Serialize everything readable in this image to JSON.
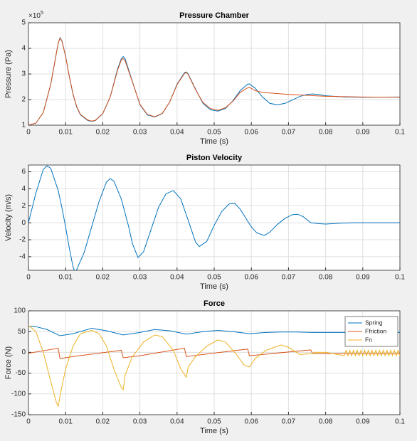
{
  "chart_data": [
    {
      "type": "line",
      "title": "Pressure Chamber",
      "xlabel": "Time (s)",
      "ylabel": "Pressure (Pa)",
      "y_multiplier": "×10",
      "y_exponent": "5",
      "xlim": [
        0,
        0.1
      ],
      "xticks": [
        0,
        0.01,
        0.02,
        0.03,
        0.04,
        0.05,
        0.06,
        0.07,
        0.08,
        0.09,
        0.1
      ],
      "ylim": [
        100000,
        500000
      ],
      "yticks": [
        {
          "value": 100000,
          "label": "1"
        },
        {
          "value": 200000,
          "label": "2"
        },
        {
          "value": 300000,
          "label": "3"
        },
        {
          "value": 400000,
          "label": "4"
        },
        {
          "value": 500000,
          "label": "5"
        }
      ],
      "grid": true,
      "series": [
        {
          "color": "#0072bd",
          "x": [
            0,
            0.002,
            0.004,
            0.006,
            0.007,
            0.008,
            0.0085,
            0.009,
            0.01,
            0.011,
            0.012,
            0.013,
            0.014,
            0.016,
            0.017,
            0.018,
            0.02,
            0.022,
            0.024,
            0.025,
            0.0255,
            0.026,
            0.028,
            0.03,
            0.032,
            0.034,
            0.036,
            0.038,
            0.04,
            0.042,
            0.0425,
            0.043,
            0.045,
            0.047,
            0.049,
            0.051,
            0.053,
            0.055,
            0.057,
            0.059,
            0.0595,
            0.061,
            0.063,
            0.065,
            0.067,
            0.069,
            0.071,
            0.073,
            0.075,
            0.0765,
            0.078,
            0.08,
            0.085,
            0.09,
            0.1
          ],
          "values": [
            100000,
            108000,
            150000,
            260000,
            340000,
            420000,
            442000,
            430000,
            370000,
            290000,
            220000,
            170000,
            140000,
            118000,
            115000,
            118000,
            145000,
            210000,
            320000,
            360000,
            368000,
            360000,
            270000,
            180000,
            140000,
            132000,
            145000,
            190000,
            260000,
            305000,
            308000,
            300000,
            240000,
            185000,
            160000,
            155000,
            165000,
            195000,
            235000,
            260000,
            261000,
            245000,
            210000,
            185000,
            180000,
            185000,
            198000,
            212000,
            220000,
            222000,
            220000,
            215000,
            210000,
            209000,
            210000
          ]
        },
        {
          "color": "#d95319",
          "x": [
            0,
            0.002,
            0.004,
            0.006,
            0.007,
            0.008,
            0.0085,
            0.009,
            0.01,
            0.011,
            0.012,
            0.013,
            0.014,
            0.016,
            0.017,
            0.018,
            0.02,
            0.022,
            0.024,
            0.025,
            0.0255,
            0.026,
            0.028,
            0.03,
            0.032,
            0.034,
            0.036,
            0.038,
            0.04,
            0.042,
            0.0425,
            0.043,
            0.045,
            0.047,
            0.049,
            0.051,
            0.053,
            0.055,
            0.057,
            0.059,
            0.0595,
            0.061,
            0.063,
            0.07,
            0.08,
            0.09,
            0.1
          ],
          "values": [
            100000,
            108000,
            150000,
            260000,
            340000,
            420000,
            440000,
            428000,
            368000,
            290000,
            222000,
            172000,
            142000,
            120000,
            116000,
            119000,
            146000,
            210000,
            315000,
            355000,
            360000,
            352000,
            268000,
            182000,
            142000,
            133000,
            146000,
            190000,
            258000,
            302000,
            306000,
            298000,
            238000,
            188000,
            165000,
            158000,
            168000,
            193000,
            228000,
            246000,
            248000,
            235000,
            228000,
            220000,
            213000,
            210000,
            209000
          ]
        }
      ]
    },
    {
      "type": "line",
      "title": "Piston Velocity",
      "xlabel": "Time (s)",
      "ylabel": "Velocity (m/s)",
      "xlim": [
        0,
        0.1
      ],
      "xticks": [
        0,
        0.01,
        0.02,
        0.03,
        0.04,
        0.05,
        0.06,
        0.07,
        0.08,
        0.09,
        0.1
      ],
      "ylim": [
        -5.6,
        6.8
      ],
      "yticks": [
        -4,
        -2,
        0,
        2,
        4,
        6
      ],
      "grid": true,
      "series": [
        {
          "color": "#0072bd",
          "x": [
            0,
            0.002,
            0.004,
            0.005,
            0.006,
            0.008,
            0.009,
            0.01,
            0.011,
            0.012,
            0.0125,
            0.013,
            0.015,
            0.017,
            0.019,
            0.021,
            0.022,
            0.023,
            0.025,
            0.027,
            0.028,
            0.0295,
            0.031,
            0.033,
            0.035,
            0.037,
            0.039,
            0.041,
            0.043,
            0.045,
            0.046,
            0.048,
            0.05,
            0.052,
            0.054,
            0.0555,
            0.057,
            0.059,
            0.06,
            0.0615,
            0.0635,
            0.065,
            0.067,
            0.069,
            0.071,
            0.0725,
            0.074,
            0.076,
            0.078,
            0.08,
            0.084,
            0.088,
            0.1
          ],
          "values": [
            0,
            3.5,
            6.3,
            6.7,
            6.4,
            3.8,
            1.8,
            -0.5,
            -3,
            -5.2,
            -5.8,
            -5.5,
            -3.5,
            -0.5,
            2.5,
            4.8,
            5.2,
            4.9,
            2.8,
            -0.5,
            -2.5,
            -4.1,
            -3.4,
            -0.8,
            1.8,
            3.4,
            3.8,
            2.8,
            0.3,
            -2.3,
            -2.8,
            -2.2,
            -0.3,
            1.3,
            2.2,
            2.3,
            1.6,
            0.2,
            -0.5,
            -1.2,
            -1.5,
            -1.1,
            -0.2,
            0.5,
            0.95,
            1,
            0.7,
            0,
            -0.1,
            -0.15,
            -0.05,
            0,
            0
          ]
        }
      ]
    },
    {
      "type": "line",
      "title": "Force",
      "xlabel": "Time (s)",
      "ylabel": "Force (N)",
      "xlim": [
        0,
        0.1
      ],
      "xticks": [
        0,
        0.01,
        0.02,
        0.03,
        0.04,
        0.05,
        0.06,
        0.07,
        0.08,
        0.09,
        0.1
      ],
      "ylim": [
        -150,
        100
      ],
      "yticks": [
        -150,
        -100,
        -50,
        0,
        50,
        100
      ],
      "grid": true,
      "legend": "northeast",
      "series": [
        {
          "name": "Spring",
          "color": "#0072bd",
          "x": [
            0,
            0.002,
            0.005,
            0.0085,
            0.012,
            0.017,
            0.021,
            0.0255,
            0.03,
            0.034,
            0.038,
            0.0425,
            0.047,
            0.051,
            0.055,
            0.0595,
            0.064,
            0.068,
            0.072,
            0.0765,
            0.08,
            0.09,
            0.1
          ],
          "values": [
            63,
            62,
            55,
            40,
            45,
            58,
            52,
            42,
            48,
            55,
            52,
            44,
            50,
            53,
            50,
            45,
            48,
            49,
            49,
            48,
            48,
            48,
            48
          ]
        },
        {
          "name": "Ffriction",
          "color": "#d95319",
          "x": [
            0,
            0.008,
            0.0085,
            0.012,
            0.025,
            0.0255,
            0.03,
            0.042,
            0.0425,
            0.059,
            0.0595,
            0.076,
            0.0765,
            0.1
          ],
          "values": [
            -2,
            10,
            -15,
            -10,
            5,
            -13,
            -8,
            10,
            -10,
            8,
            -8,
            6,
            -3,
            -3
          ]
        },
        {
          "name": "Fn",
          "color": "#edb120",
          "x": [
            0,
            0.002,
            0.004,
            0.006,
            0.0075,
            0.008,
            0.0085,
            0.01,
            0.012,
            0.014,
            0.017,
            0.019,
            0.021,
            0.023,
            0.025,
            0.0255,
            0.026,
            0.028,
            0.031,
            0.034,
            0.036,
            0.039,
            0.041,
            0.0425,
            0.043,
            0.045,
            0.048,
            0.051,
            0.053,
            0.056,
            0.058,
            0.0595,
            0.061,
            0.064,
            0.068,
            0.07,
            0.073,
            0.0765,
            0.077,
            0.08,
            0.085,
            0.0855,
            0.086,
            0.0865,
            0.087,
            0.0875,
            0.088,
            0.0885,
            0.089,
            0.0895,
            0.09,
            0.0905,
            0.091,
            0.0915,
            0.092,
            0.0925,
            0.093,
            0.0935,
            0.094,
            0.0945,
            0.095,
            0.0955,
            0.096,
            0.0965,
            0.097,
            0.0975,
            0.098,
            0.0985,
            0.099,
            0.0995,
            0.1
          ],
          "values": [
            65,
            50,
            0,
            -70,
            -120,
            -130,
            -105,
            -40,
            15,
            45,
            53,
            45,
            15,
            -40,
            -85,
            -90,
            -55,
            -10,
            25,
            42,
            38,
            5,
            -40,
            -60,
            -35,
            -10,
            15,
            30,
            25,
            -5,
            -30,
            -35,
            -15,
            5,
            18,
            12,
            -5,
            -3,
            0,
            0,
            -8,
            5,
            -8,
            5,
            -8,
            5,
            -8,
            5,
            -8,
            5,
            -8,
            5,
            -8,
            5,
            -8,
            5,
            -8,
            5,
            -8,
            5,
            -8,
            5,
            -8,
            5,
            -8,
            5,
            -8,
            5,
            -8,
            5,
            -8
          ]
        }
      ]
    }
  ]
}
